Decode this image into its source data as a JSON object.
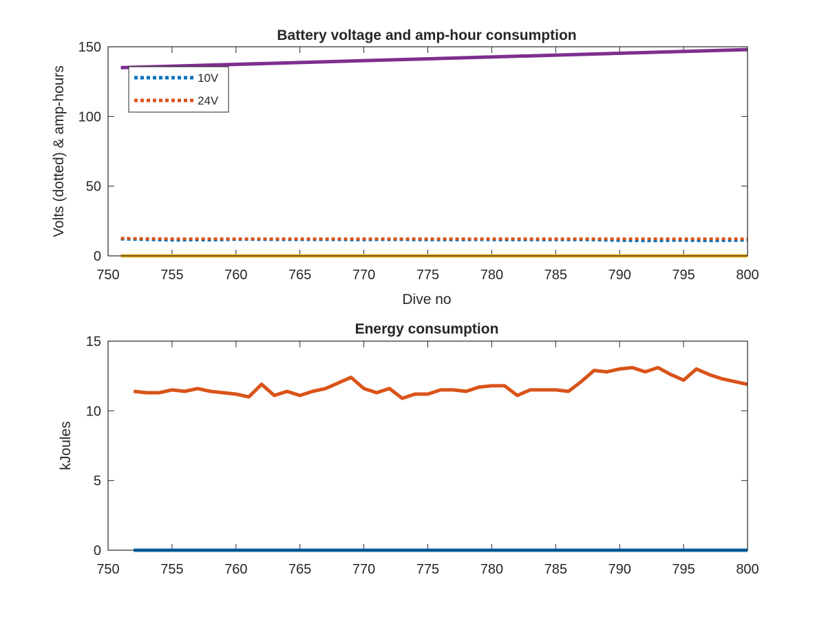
{
  "chart_data": [
    {
      "type": "line",
      "title": "Battery voltage and amp-hour consumption",
      "xlabel": "Dive no",
      "ylabel": "Volts (dotted) & amp-hours",
      "xlim": [
        750,
        800
      ],
      "ylim": [
        0,
        150
      ],
      "xticks": [
        750,
        755,
        760,
        765,
        770,
        775,
        780,
        785,
        790,
        795,
        800
      ],
      "yticks": [
        0,
        50,
        100,
        150
      ],
      "grid": false,
      "legend_position": "top-left",
      "series": [
        {
          "name": "10V",
          "style": "dotted",
          "color": "#0072BD",
          "x": [
            751,
            752,
            753,
            754,
            755,
            756,
            757,
            758,
            759,
            760,
            761,
            762,
            763,
            764,
            765,
            766,
            767,
            768,
            769,
            770,
            771,
            772,
            773,
            774,
            775,
            776,
            777,
            778,
            779,
            780,
            781,
            782,
            783,
            784,
            785,
            786,
            787,
            788,
            789,
            790,
            791,
            792,
            793,
            794,
            795,
            796,
            797,
            798,
            799,
            800
          ],
          "values": [
            12,
            11.8,
            11.6,
            11.4,
            11.2,
            11.3,
            11.4,
            11.3,
            11.5,
            11.7,
            11.8,
            11.7,
            11.6,
            11.6,
            11.6,
            11.6,
            11.6,
            11.6,
            11.5,
            11.5,
            11.6,
            11.6,
            11.6,
            11.5,
            11.5,
            11.5,
            11.5,
            11.5,
            11.6,
            11.5,
            11.4,
            11.5,
            11.5,
            11.5,
            11.5,
            11.5,
            11.5,
            11.4,
            11.2,
            11.0,
            10.9,
            10.8,
            10.8,
            11.0,
            11.1,
            10.9,
            10.8,
            10.9,
            11.0,
            11.2
          ]
        },
        {
          "name": "24V",
          "style": "dotted",
          "color": "#D95319",
          "x": [
            751,
            752,
            753,
            754,
            755,
            756,
            757,
            758,
            759,
            760,
            761,
            762,
            763,
            764,
            765,
            766,
            767,
            768,
            769,
            770,
            771,
            772,
            773,
            774,
            775,
            776,
            777,
            778,
            779,
            780,
            781,
            782,
            783,
            784,
            785,
            786,
            787,
            788,
            789,
            790,
            791,
            792,
            793,
            794,
            795,
            796,
            797,
            798,
            799,
            800
          ],
          "values": [
            12.6,
            12.5,
            12.4,
            12.3,
            12.2,
            12.2,
            12.2,
            12.2,
            12.2,
            12.2,
            12.2,
            12.2,
            12.2,
            12.2,
            12.2,
            12.2,
            12.2,
            12.2,
            12.2,
            12.2,
            12.2,
            12.2,
            12.2,
            12.2,
            12.2,
            12.2,
            12.2,
            12.2,
            12.2,
            12.2,
            12.2,
            12.2,
            12.2,
            12.2,
            12.2,
            12.2,
            12.2,
            12.2,
            12.2,
            12.2,
            12.2,
            12.2,
            12.2,
            12.2,
            12.2,
            12.2,
            12.2,
            12.2,
            12.2,
            12.2
          ]
        },
        {
          "style": "solid",
          "color": "#EDB120",
          "x": [
            751,
            800
          ],
          "values": [
            0,
            0
          ]
        },
        {
          "style": "solid",
          "color": "#7E2F8E",
          "x": [
            751,
            800
          ],
          "values": [
            135,
            148
          ]
        }
      ]
    },
    {
      "type": "line",
      "title": "Energy consumption",
      "xlabel": "",
      "ylabel": "kJoules",
      "xlim": [
        750,
        800
      ],
      "ylim": [
        0,
        15
      ],
      "xticks": [
        750,
        755,
        760,
        765,
        770,
        775,
        780,
        785,
        790,
        795,
        800
      ],
      "yticks": [
        0,
        5,
        10,
        15
      ],
      "grid": false,
      "series": [
        {
          "style": "solid",
          "color": "#0072BD",
          "x": [
            752,
            800
          ],
          "values": [
            0,
            0
          ]
        },
        {
          "style": "solid",
          "color": "#D95319",
          "x": [
            752,
            753,
            754,
            755,
            756,
            757,
            758,
            759,
            760,
            761,
            762,
            763,
            764,
            765,
            766,
            767,
            768,
            769,
            770,
            771,
            772,
            773,
            774,
            775,
            776,
            777,
            778,
            779,
            780,
            781,
            782,
            783,
            784,
            785,
            786,
            787,
            788,
            789,
            790,
            791,
            792,
            793,
            794,
            795,
            796,
            797,
            798,
            799,
            800
          ],
          "values": [
            11.4,
            11.3,
            11.3,
            11.5,
            11.4,
            11.6,
            11.4,
            11.3,
            11.2,
            11.0,
            11.9,
            11.1,
            11.4,
            11.1,
            11.4,
            11.6,
            12.0,
            12.4,
            11.6,
            11.3,
            11.6,
            10.9,
            11.2,
            11.2,
            11.5,
            11.5,
            11.4,
            11.7,
            11.8,
            11.8,
            11.1,
            11.5,
            11.5,
            11.5,
            11.4,
            12.1,
            12.9,
            12.8,
            13.0,
            13.1,
            12.8,
            13.1,
            12.6,
            12.2,
            13.0,
            12.6,
            12.3,
            12.1,
            11.9
          ]
        }
      ]
    }
  ]
}
